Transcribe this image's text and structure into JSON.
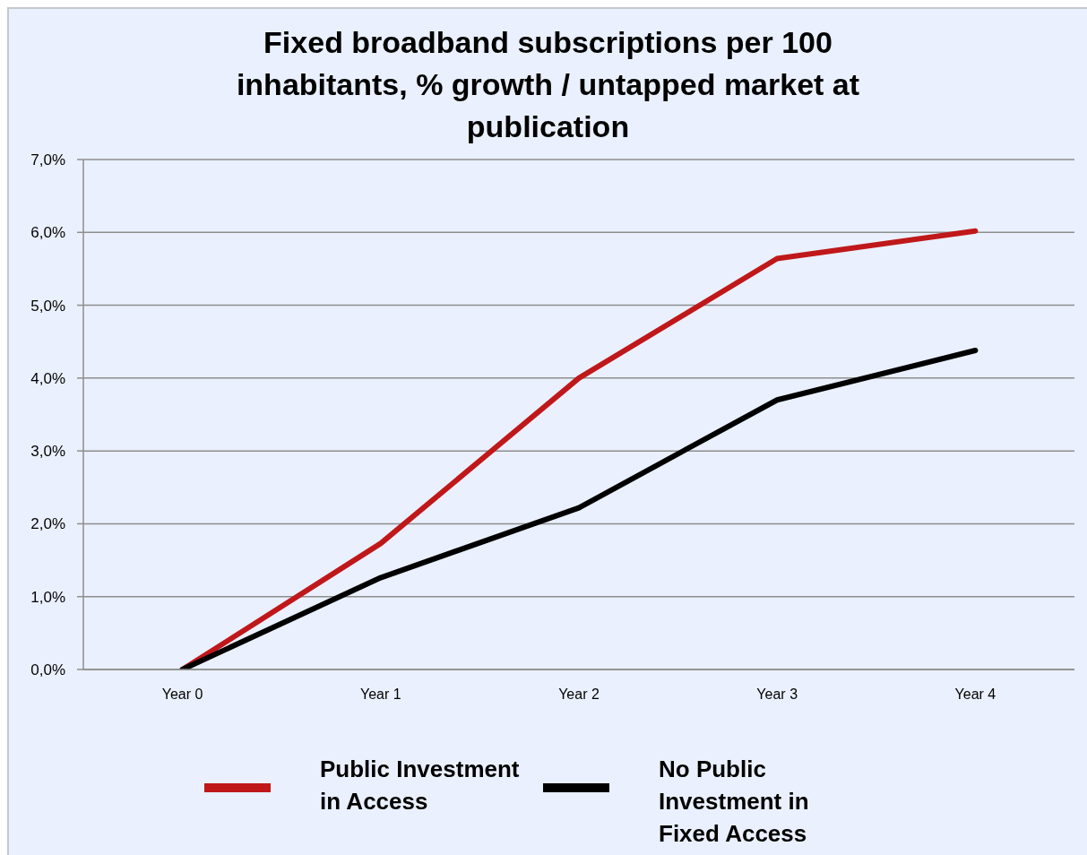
{
  "chart_data": {
    "type": "line",
    "title": "Fixed broadband subscriptions per 100 inhabitants, % growth / untapped market at publication",
    "categories": [
      "Year 0",
      "Year 1",
      "Year 2",
      "Year 3",
      "Year 4"
    ],
    "series": [
      {
        "name": "Public Investment in Access",
        "color": "#c0181a",
        "values": [
          0,
          1.73,
          4.0,
          5.64,
          6.02
        ]
      },
      {
        "name": "No Public Investment in Fixed Access",
        "color": "#000000",
        "values": [
          0,
          1.26,
          2.22,
          3.7,
          4.38
        ]
      }
    ],
    "ylim": [
      0,
      7
    ],
    "yticks": [
      {
        "value": 0,
        "label": "0,0%"
      },
      {
        "value": 1,
        "label": "1,0%"
      },
      {
        "value": 2,
        "label": "2,0%"
      },
      {
        "value": 3,
        "label": "3,0%"
      },
      {
        "value": 4,
        "label": "4,0%"
      },
      {
        "value": 5,
        "label": "5,0%"
      },
      {
        "value": 6,
        "label": "6,0%"
      },
      {
        "value": 7,
        "label": "7,0%"
      }
    ],
    "grid": "y",
    "legend": "bottom"
  }
}
